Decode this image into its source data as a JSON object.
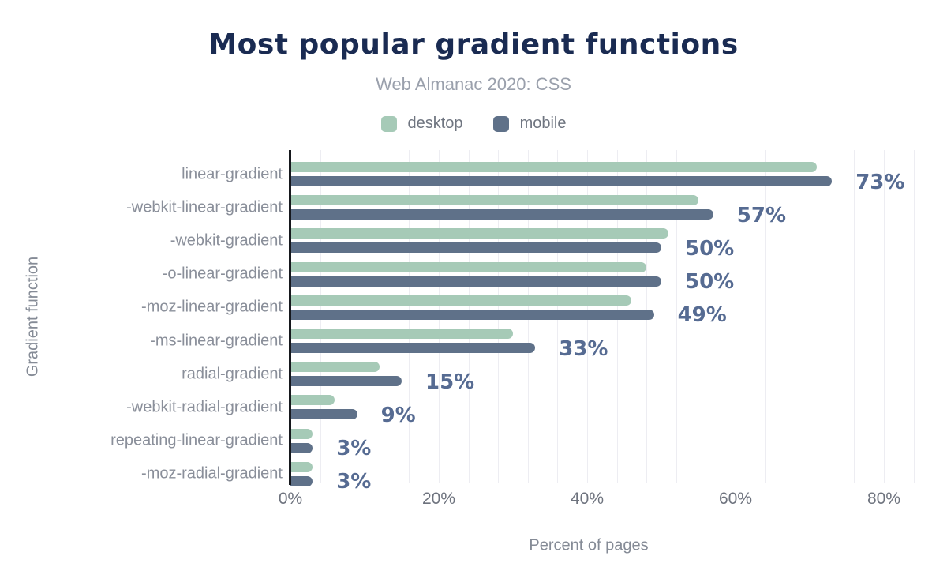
{
  "chart_data": {
    "type": "bar",
    "orientation": "horizontal",
    "title": "Most popular gradient functions",
    "subtitle": "Web Almanac 2020: CSS",
    "xlabel": "Percent of pages",
    "ylabel": "Gradient function",
    "categories": [
      "linear-gradient",
      "-webkit-linear-gradient",
      "-webkit-gradient",
      "-o-linear-gradient",
      "-moz-linear-gradient",
      "-ms-linear-gradient",
      "radial-gradient",
      "-webkit-radial-gradient",
      "repeating-linear-gradient",
      "-moz-radial-gradient"
    ],
    "series": [
      {
        "name": "desktop",
        "color": "#a6cab7",
        "values": [
          71,
          55,
          51,
          48,
          46,
          30,
          12,
          6,
          3,
          3
        ]
      },
      {
        "name": "mobile",
        "color": "#5f7189",
        "values": [
          73,
          57,
          50,
          50,
          49,
          33,
          15,
          9,
          3,
          3
        ]
      }
    ],
    "value_labels": [
      "73%",
      "57%",
      "50%",
      "50%",
      "49%",
      "33%",
      "15%",
      "9%",
      "3%",
      "3%"
    ],
    "x_ticks": [
      {
        "label": "0%",
        "value": 0
      },
      {
        "label": "20%",
        "value": 20
      },
      {
        "label": "40%",
        "value": 40
      },
      {
        "label": "60%",
        "value": 60
      },
      {
        "label": "80%",
        "value": 80
      }
    ],
    "xlim": [
      0,
      85
    ],
    "grid": {
      "show": true,
      "minor_step_percent": 4,
      "color": "#ededf2"
    },
    "legend_position": "top",
    "colors": {
      "title": "#1a2b52",
      "subtitle": "#9aa0ac",
      "value_label": "#566b92",
      "axis_line": "#16181d",
      "category_label": "#8a8f9a",
      "tick_label": "#6e737e",
      "axis_title": "#858b96"
    }
  }
}
